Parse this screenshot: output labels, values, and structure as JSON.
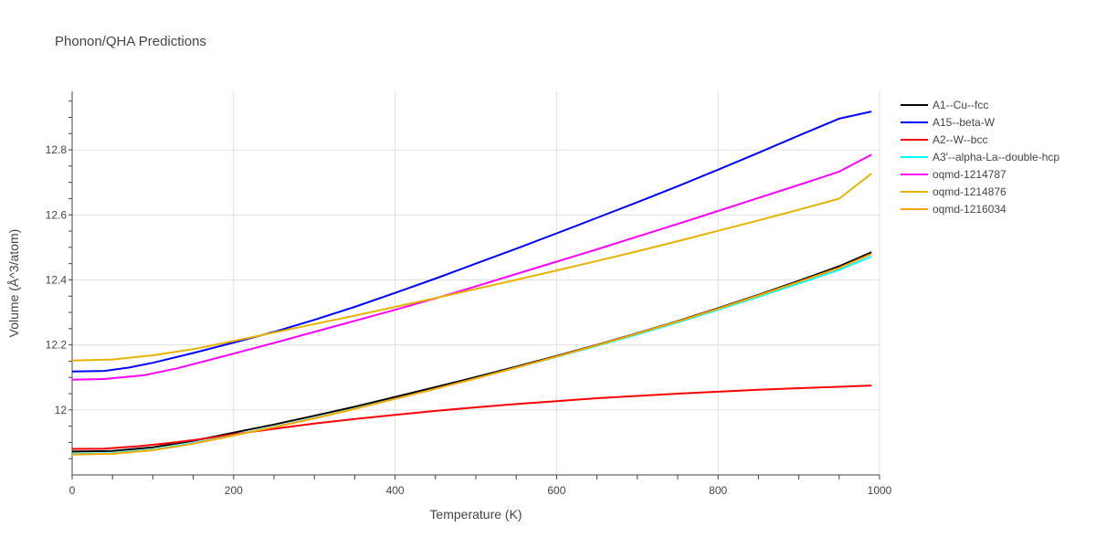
{
  "chart_data": {
    "type": "line",
    "title": "Phonon/QHA Predictions",
    "xlabel": "Temperature (K)",
    "ylabel": "Volume (Å^3/atom)",
    "xlim": [
      0,
      1000
    ],
    "ylim": [
      11.8,
      12.98
    ],
    "x_ticks": [
      0,
      200,
      400,
      600,
      800,
      1000
    ],
    "x_tick_labels": [
      "0",
      "200",
      "400",
      "600",
      "800",
      "1000"
    ],
    "y_ticks": [
      12.0,
      12.2,
      12.4,
      12.6,
      12.8
    ],
    "y_tick_labels": [
      "12",
      "12.2",
      "12.4",
      "12.6",
      "12.8"
    ],
    "grid": true,
    "legend_position": "right",
    "series": [
      {
        "name": "A1--Cu--fcc",
        "color": "#000000",
        "x": [
          0,
          50,
          100,
          150,
          200,
          250,
          300,
          350,
          400,
          450,
          500,
          550,
          600,
          650,
          700,
          750,
          800,
          850,
          900,
          950,
          990
        ],
        "y": [
          11.872,
          11.874,
          11.885,
          11.905,
          11.93,
          11.955,
          11.982,
          12.01,
          12.04,
          12.07,
          12.101,
          12.133,
          12.166,
          12.2,
          12.236,
          12.273,
          12.313,
          12.354,
          12.397,
          12.442,
          12.485
        ]
      },
      {
        "name": "A15--beta-W",
        "color": "#0000ff",
        "x": [
          0,
          40,
          70,
          100,
          150,
          200,
          250,
          300,
          350,
          400,
          450,
          500,
          550,
          600,
          650,
          700,
          750,
          800,
          850,
          900,
          950,
          990
        ],
        "y": [
          12.118,
          12.12,
          12.13,
          12.145,
          12.175,
          12.207,
          12.24,
          12.277,
          12.317,
          12.36,
          12.404,
          12.45,
          12.496,
          12.543,
          12.591,
          12.639,
          12.688,
          12.739,
          12.791,
          12.844,
          12.896,
          12.918
        ]
      },
      {
        "name": "A2--W--bcc",
        "color": "#ff0000",
        "x": [
          0,
          40,
          80,
          120,
          160,
          200,
          250,
          300,
          350,
          400,
          450,
          500,
          550,
          600,
          650,
          700,
          750,
          800,
          850,
          900,
          950,
          990
        ],
        "y": [
          11.88,
          11.881,
          11.888,
          11.898,
          11.91,
          11.925,
          11.942,
          11.958,
          11.972,
          11.985,
          11.997,
          12.008,
          12.018,
          12.027,
          12.036,
          12.043,
          12.05,
          12.056,
          12.062,
          12.067,
          12.071,
          12.075
        ]
      },
      {
        "name": "A3'--alpha-La--double-hcp",
        "color": "#00ffff",
        "x": [
          0,
          50,
          100,
          150,
          200,
          250,
          300,
          350,
          400,
          450,
          500,
          550,
          600,
          650,
          700,
          750,
          800,
          850,
          900,
          950,
          990
        ],
        "y": [
          11.865,
          11.867,
          11.878,
          11.898,
          11.922,
          11.948,
          11.975,
          12.004,
          12.034,
          12.065,
          12.097,
          12.13,
          12.163,
          12.197,
          12.232,
          12.269,
          12.308,
          12.348,
          12.389,
          12.431,
          12.472
        ]
      },
      {
        "name": "oqmd-1214787",
        "color": "#ff00ff",
        "x": [
          0,
          40,
          90,
          130,
          200,
          250,
          300,
          350,
          400,
          450,
          500,
          550,
          600,
          650,
          700,
          750,
          800,
          850,
          900,
          950,
          990
        ],
        "y": [
          12.093,
          12.095,
          12.107,
          12.128,
          12.173,
          12.206,
          12.24,
          12.274,
          12.308,
          12.343,
          12.38,
          12.418,
          12.456,
          12.494,
          12.533,
          12.572,
          12.612,
          12.652,
          12.692,
          12.733,
          12.785
        ]
      },
      {
        "name": "oqmd-1214876",
        "color": "#e6b400",
        "x": [
          0,
          50,
          100,
          150,
          200,
          250,
          300,
          350,
          400,
          450,
          500,
          550,
          600,
          650,
          700,
          750,
          800,
          850,
          900,
          950,
          990
        ],
        "y": [
          12.152,
          12.155,
          12.168,
          12.187,
          12.212,
          12.238,
          12.264,
          12.29,
          12.317,
          12.344,
          12.372,
          12.4,
          12.429,
          12.458,
          12.488,
          12.519,
          12.551,
          12.583,
          12.616,
          12.65,
          12.727
        ]
      },
      {
        "name": "oqmd-1216034",
        "color": "#ffa500",
        "x": [
          0,
          50,
          100,
          150,
          200,
          250,
          300,
          350,
          400,
          450,
          500,
          550,
          600,
          650,
          700,
          750,
          800,
          850,
          900,
          950,
          990
        ],
        "y": [
          11.863,
          11.865,
          11.876,
          11.896,
          11.921,
          11.947,
          11.974,
          12.003,
          12.034,
          12.065,
          12.097,
          12.13,
          12.164,
          12.199,
          12.235,
          12.272,
          12.311,
          12.352,
          12.394,
          12.437,
          12.48
        ]
      }
    ]
  }
}
